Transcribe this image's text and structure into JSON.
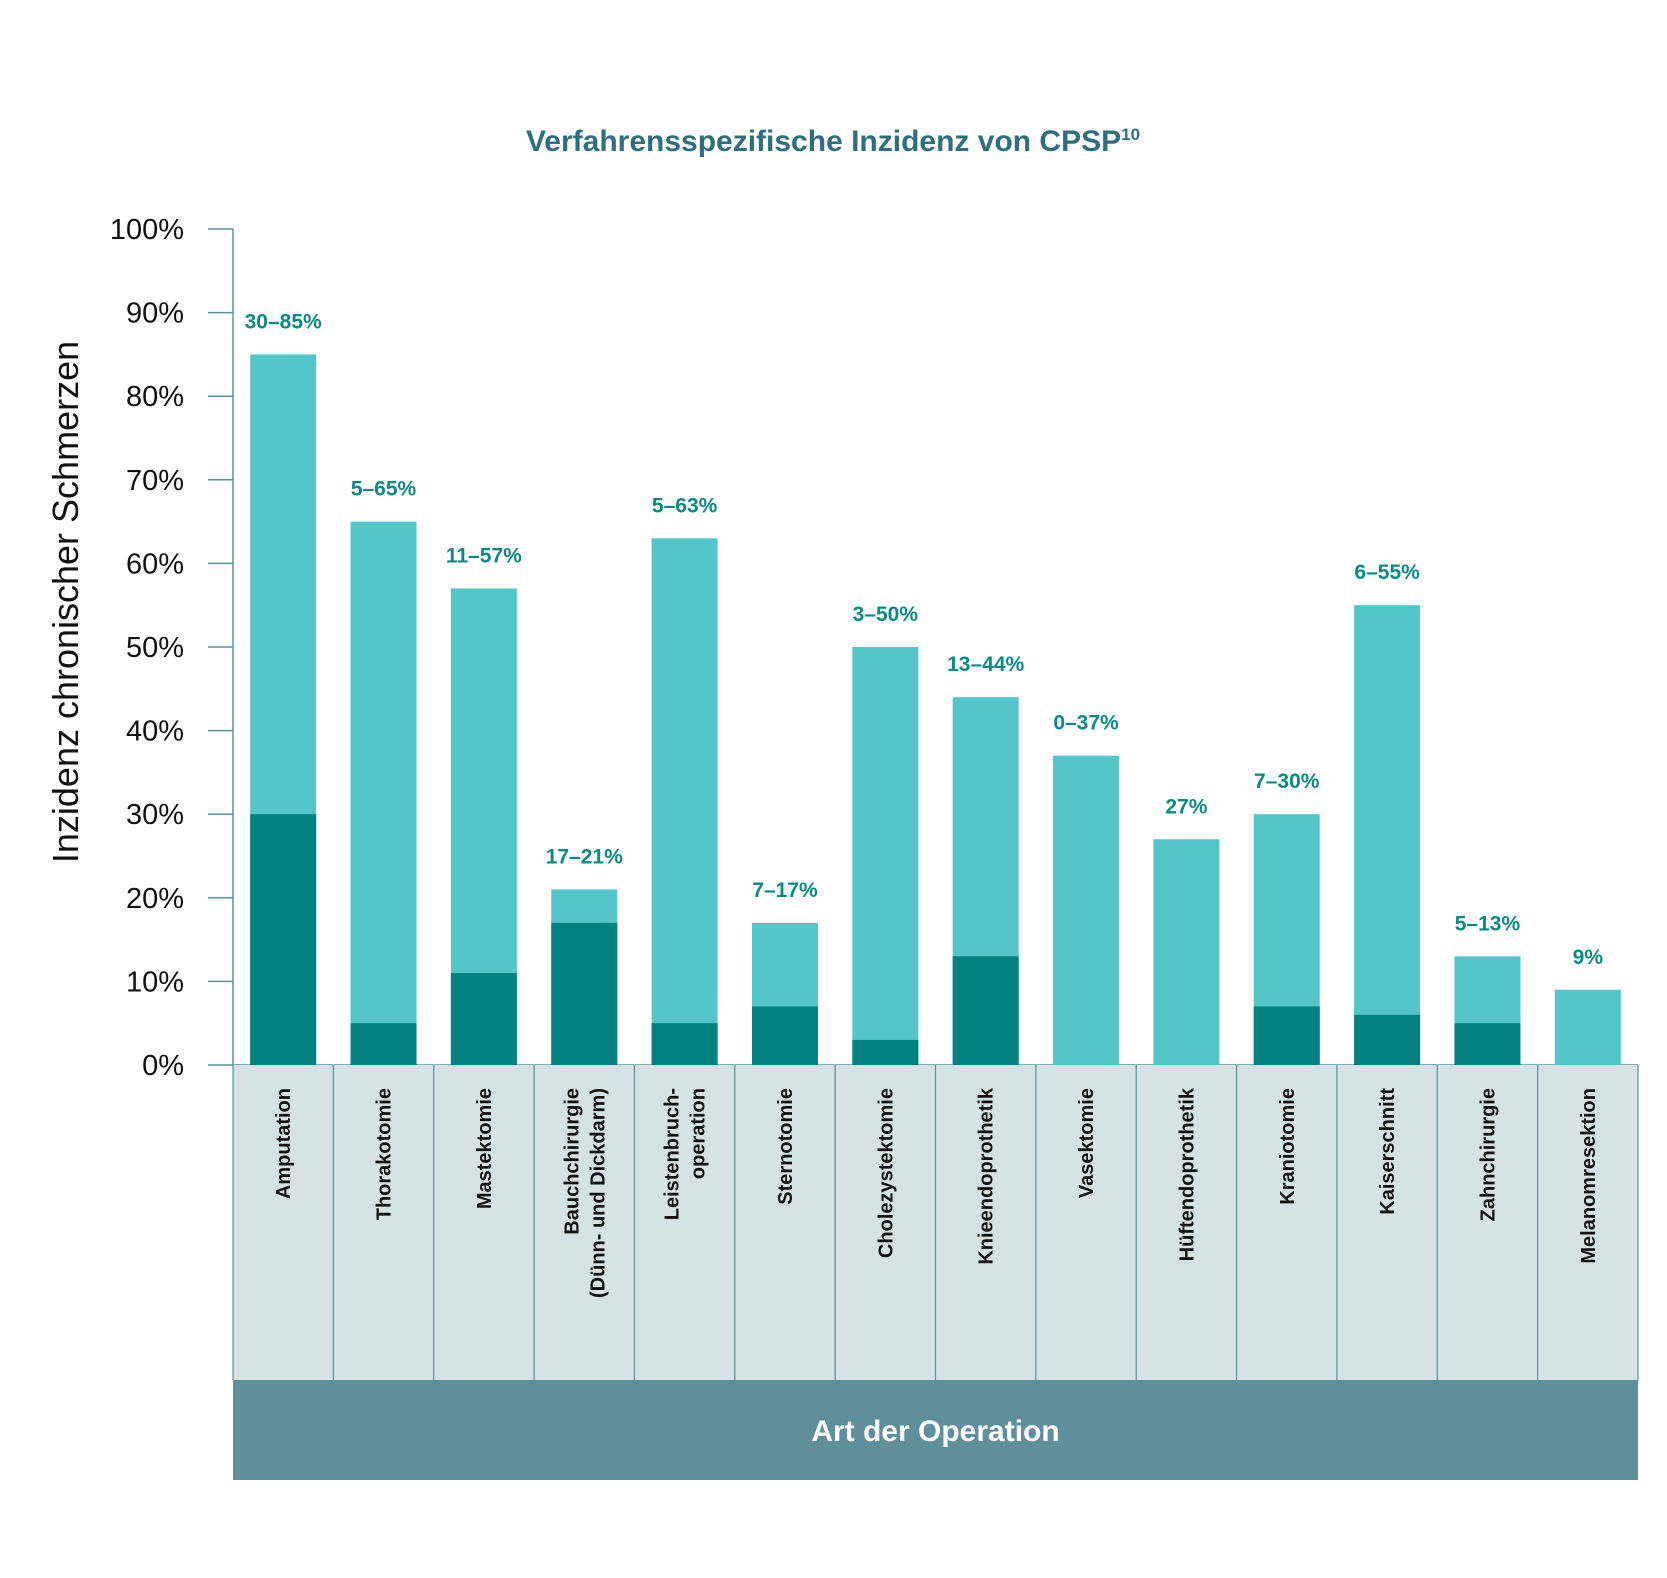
{
  "chart_data": {
    "type": "bar",
    "title": "Verfahrensspezifische Inzidenz von CPSP",
    "title_superscript": "10",
    "ylabel": "Inzidenz chronischer Schmerzen",
    "xlabel": "Art der Operation",
    "ylim": [
      0,
      100
    ],
    "yticks": [
      "0%",
      "10%",
      "20%",
      "30%",
      "40%",
      "50%",
      "60%",
      "70%",
      "80%",
      "90%",
      "100%"
    ],
    "categories": [
      [
        "Amputation"
      ],
      [
        "Thorakotomie"
      ],
      [
        "Mastektomie"
      ],
      [
        "Bauchchirurgie",
        "(Dünn- und Dickdarm)"
      ],
      [
        "Leistenbruch-",
        "operation"
      ],
      [
        "Sternotomie"
      ],
      [
        "Cholezystektomie"
      ],
      [
        "Knieendoprothetik"
      ],
      [
        "Vasektomie"
      ],
      [
        "Hüftendoprothetik"
      ],
      [
        "Kraniotomie"
      ],
      [
        "Kaiserschnitt"
      ],
      [
        "Zahnchirurgie"
      ],
      [
        "Melanomresektion"
      ]
    ],
    "series": [
      {
        "values": [
          30,
          5,
          11,
          17,
          5,
          7,
          3,
          13,
          0,
          0,
          7,
          6,
          5,
          0
        ]
      },
      {
        "values": [
          85,
          65,
          57,
          21,
          63,
          17,
          50,
          44,
          37,
          27,
          30,
          55,
          13,
          9
        ]
      }
    ],
    "data_labels": [
      "30–85%",
      "5–65%",
      "11–57%",
      "17–21%",
      "5–63%",
      "7–17%",
      "3–50%",
      "13–44%",
      "0–37%",
      "27%",
      "7–30%",
      "6–55%",
      "5–13%",
      "9%"
    ],
    "grid": false,
    "colors": {
      "low": "#028180",
      "high": "#54c6c9",
      "title": "#2f6f7c",
      "label": "#0b8a82",
      "axis": "#5e8f9b",
      "category_bg": "#d6e3e6",
      "category_border": "#5e8f9b",
      "xlabel_bg": "#5e8f9b"
    }
  }
}
